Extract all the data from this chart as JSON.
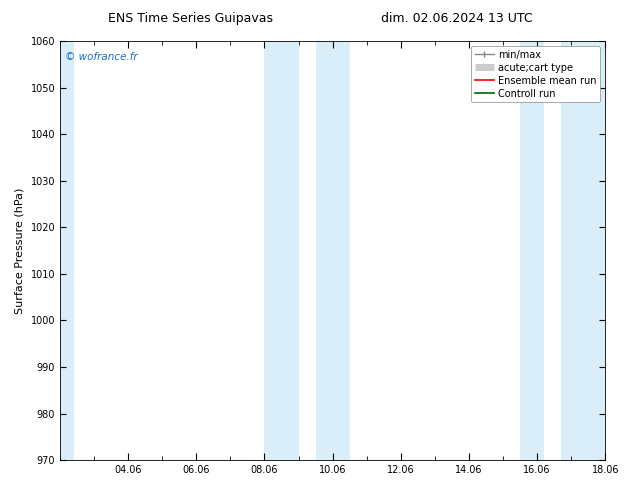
{
  "title_left": "ENS Time Series Guipavas",
  "title_right": "dim. 02.06.2024 13 UTC",
  "ylabel": "Surface Pressure (hPa)",
  "ylim": [
    970,
    1060
  ],
  "yticks": [
    970,
    980,
    990,
    1000,
    1010,
    1020,
    1030,
    1040,
    1050,
    1060
  ],
  "xlim": [
    0,
    16
  ],
  "xtick_labels": [
    "04.06",
    "06.06",
    "08.06",
    "10.06",
    "12.06",
    "14.06",
    "16.06",
    "18.06"
  ],
  "xtick_positions": [
    2,
    4,
    6,
    8,
    10,
    12,
    14,
    16
  ],
  "shaded_bands": [
    {
      "x_start": 0.0,
      "x_end": 0.42
    },
    {
      "x_start": 6.0,
      "x_end": 7.0
    },
    {
      "x_start": 7.5,
      "x_end": 8.5
    },
    {
      "x_start": 13.5,
      "x_end": 14.2
    },
    {
      "x_start": 14.7,
      "x_end": 16.0
    }
  ],
  "background_color": "#ffffff",
  "shading_color": "#d9eef8",
  "watermark_text": "© wofrance.fr",
  "watermark_color": "#1a6fc4",
  "title_fontsize": 9,
  "tick_fontsize": 7,
  "ylabel_fontsize": 8,
  "legend_fontsize": 7
}
